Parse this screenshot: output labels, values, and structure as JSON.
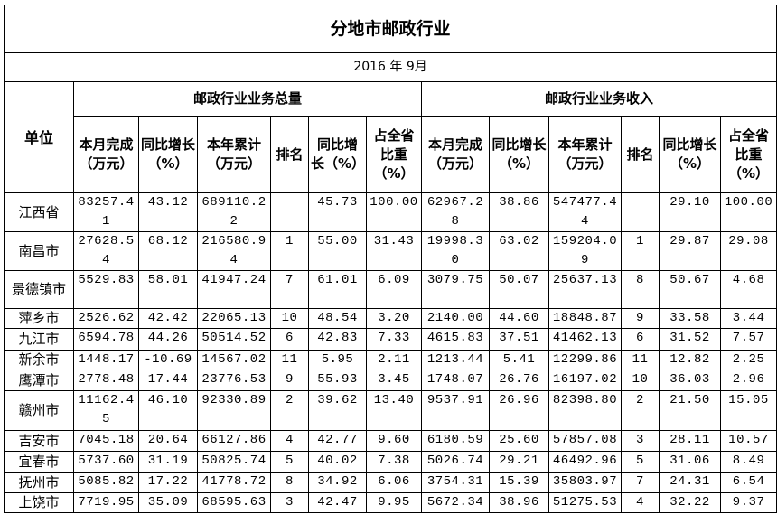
{
  "title": "分地市邮政行业",
  "date": "2016 年 9月",
  "headers": {
    "unit": "单位",
    "group1": "邮政行业业务总量",
    "group2": "邮政行业业务收入",
    "cols": [
      "本月完成（万元）",
      "同比增长（%）",
      "本年累计（万元）",
      "排名",
      "同比增长（%）",
      "占全省比重（%）"
    ]
  },
  "rows": [
    {
      "name": "江西省",
      "v": [
        "83257.41",
        "43.12",
        "689110.22",
        "",
        "45.73",
        "100.00",
        "62967.28",
        "38.86",
        "547477.44",
        "",
        "29.10",
        "100.00"
      ]
    },
    {
      "name": "南昌市",
      "v": [
        "27628.54",
        "68.12",
        "216580.94",
        "1",
        "55.00",
        "31.43",
        "19998.30",
        "63.02",
        "159204.09",
        "1",
        "29.87",
        "29.08"
      ]
    },
    {
      "name": "景德镇市",
      "v": [
        "5529.83",
        "58.01",
        "41947.24",
        "7",
        "61.01",
        "6.09",
        "3079.75",
        "50.07",
        "25637.13",
        "8",
        "50.67",
        "4.68"
      ]
    },
    {
      "name": "萍乡市",
      "v": [
        "2526.62",
        "42.42",
        "22065.13",
        "10",
        "48.54",
        "3.20",
        "2140.00",
        "44.60",
        "18848.87",
        "9",
        "33.58",
        "3.44"
      ]
    },
    {
      "name": "九江市",
      "v": [
        "6594.78",
        "44.26",
        "50514.52",
        "6",
        "42.83",
        "7.33",
        "4615.83",
        "37.51",
        "41462.13",
        "6",
        "31.52",
        "7.57"
      ]
    },
    {
      "name": "新余市",
      "v": [
        "1448.17",
        "-10.69",
        "14567.02",
        "11",
        "5.95",
        "2.11",
        "1213.44",
        "5.41",
        "12299.86",
        "11",
        "12.82",
        "2.25"
      ]
    },
    {
      "name": "鹰潭市",
      "v": [
        "2778.48",
        "17.44",
        "23776.53",
        "9",
        "55.93",
        "3.45",
        "1748.07",
        "26.76",
        "16197.02",
        "10",
        "36.03",
        "2.96"
      ]
    },
    {
      "name": "赣州市",
      "v": [
        "11162.45",
        "46.10",
        "92330.89",
        "2",
        "39.62",
        "13.40",
        "9537.91",
        "26.96",
        "82398.80",
        "2",
        "21.50",
        "15.05"
      ]
    },
    {
      "name": "吉安市",
      "v": [
        "7045.18",
        "20.64",
        "66127.86",
        "4",
        "42.77",
        "9.60",
        "6180.59",
        "25.60",
        "57857.08",
        "3",
        "28.11",
        "10.57"
      ]
    },
    {
      "name": "宜春市",
      "v": [
        "5737.60",
        "31.19",
        "50825.74",
        "5",
        "40.02",
        "7.38",
        "5026.74",
        "29.21",
        "46492.96",
        "5",
        "31.06",
        "8.49"
      ]
    },
    {
      "name": "抚州市",
      "v": [
        "5085.82",
        "17.22",
        "41778.72",
        "8",
        "34.92",
        "6.06",
        "3754.31",
        "15.39",
        "35803.97",
        "7",
        "24.31",
        "6.54"
      ]
    },
    {
      "name": "上饶市",
      "v": [
        "7719.95",
        "35.09",
        "68595.63",
        "3",
        "42.47",
        "9.95",
        "5672.34",
        "38.96",
        "51275.53",
        "4",
        "32.22",
        "9.37"
      ]
    }
  ]
}
